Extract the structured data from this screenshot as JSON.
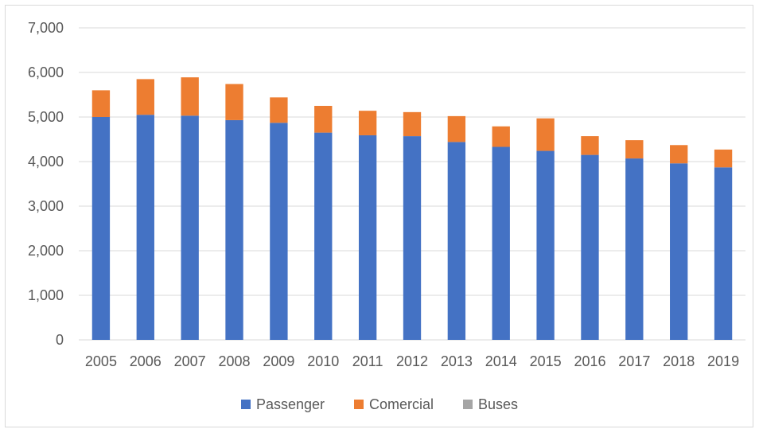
{
  "chart_data": {
    "type": "bar",
    "stacked": true,
    "categories": [
      "2005",
      "2006",
      "2007",
      "2008",
      "2009",
      "2010",
      "2011",
      "2012",
      "2013",
      "2014",
      "2015",
      "2016",
      "2017",
      "2018",
      "2019"
    ],
    "series": [
      {
        "name": "Passenger",
        "color": "#4472c4",
        "values": [
          5000,
          5050,
          5030,
          4930,
          4870,
          4650,
          4590,
          4570,
          4440,
          4330,
          4240,
          4150,
          4070,
          3960,
          3870
        ]
      },
      {
        "name": "Comercial",
        "color": "#ed7d31",
        "values": [
          600,
          800,
          860,
          810,
          570,
          600,
          550,
          540,
          580,
          460,
          730,
          420,
          410,
          410,
          400
        ]
      },
      {
        "name": "Buses",
        "color": "#a5a5a5",
        "values": [
          0,
          0,
          0,
          0,
          0,
          0,
          0,
          0,
          0,
          0,
          0,
          0,
          0,
          0,
          0
        ]
      }
    ],
    "ylim": [
      0,
      7000
    ],
    "yticks": [
      "0",
      "1,000",
      "2,000",
      "3,000",
      "4,000",
      "5,000",
      "6,000",
      "7,000"
    ],
    "grid": true,
    "legend_position": "bottom",
    "title": "",
    "xlabel": "",
    "ylabel": ""
  }
}
